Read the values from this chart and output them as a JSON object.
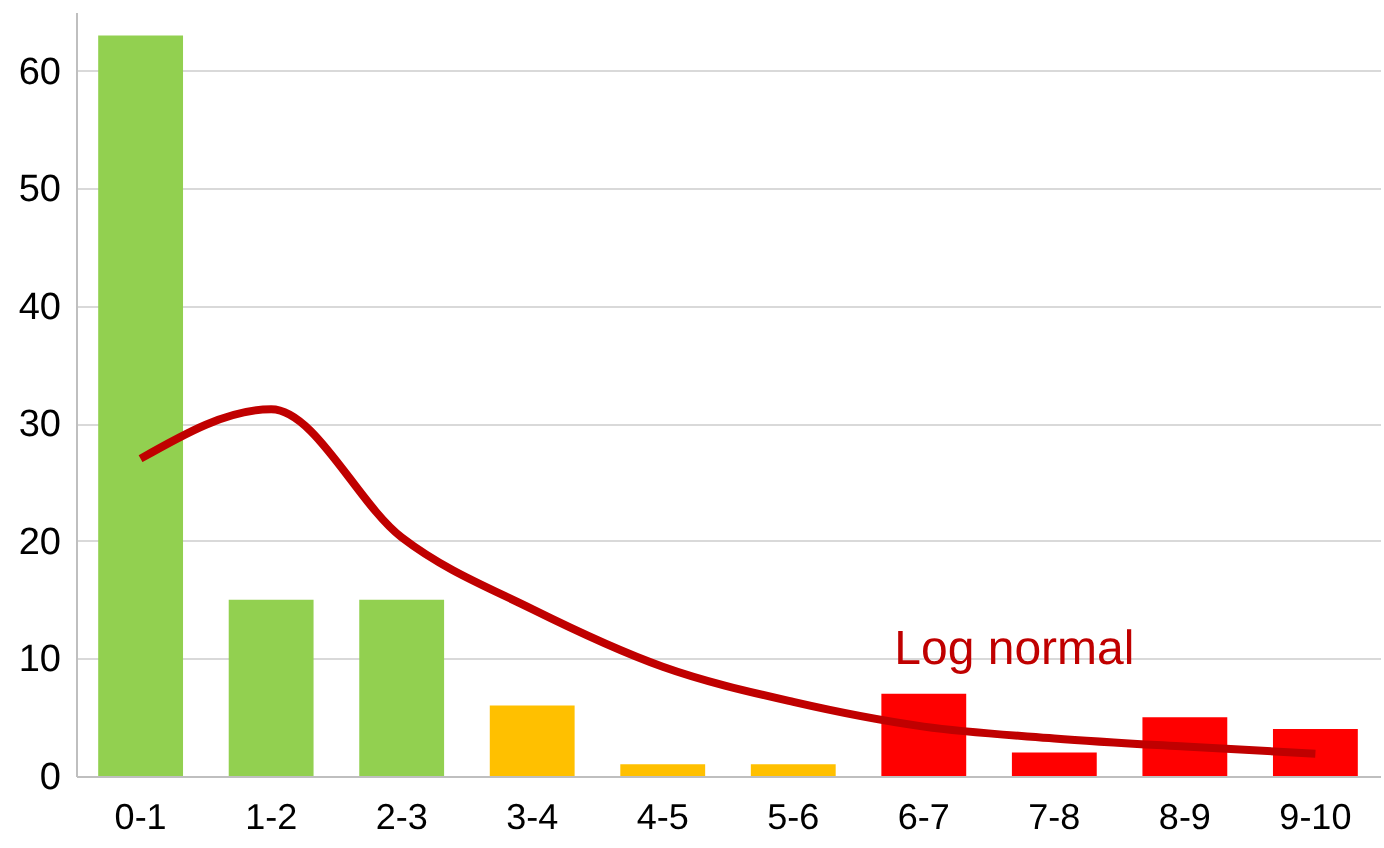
{
  "chart_data": {
    "type": "bar",
    "categories": [
      "0-1",
      "1-2",
      "2-3",
      "3-4",
      "4-5",
      "5-6",
      "6-7",
      "7-8",
      "8-9",
      "9-10"
    ],
    "series": [
      {
        "colors": [
          "#92d050",
          "#92d050",
          "#92d050",
          "#ffc000",
          "#ffc000",
          "#ffc000",
          "#ff0000",
          "#ff0000",
          "#ff0000",
          "#ff0000"
        ],
        "values": [
          63,
          15,
          15,
          6,
          1,
          1,
          7,
          2,
          5,
          4
        ]
      },
      {
        "type": "line",
        "name": "Log normal",
        "color": "#c00000",
        "values": [
          27,
          31.2,
          20.3,
          14.2,
          9.3,
          6.3,
          4.2,
          3.2,
          2.5,
          1.9
        ]
      }
    ],
    "ylim": [
      0,
      65
    ],
    "yticks": [
      0,
      10,
      20,
      30,
      40,
      50,
      60
    ],
    "grid": "y",
    "marker": "none",
    "line_style": "solid"
  }
}
